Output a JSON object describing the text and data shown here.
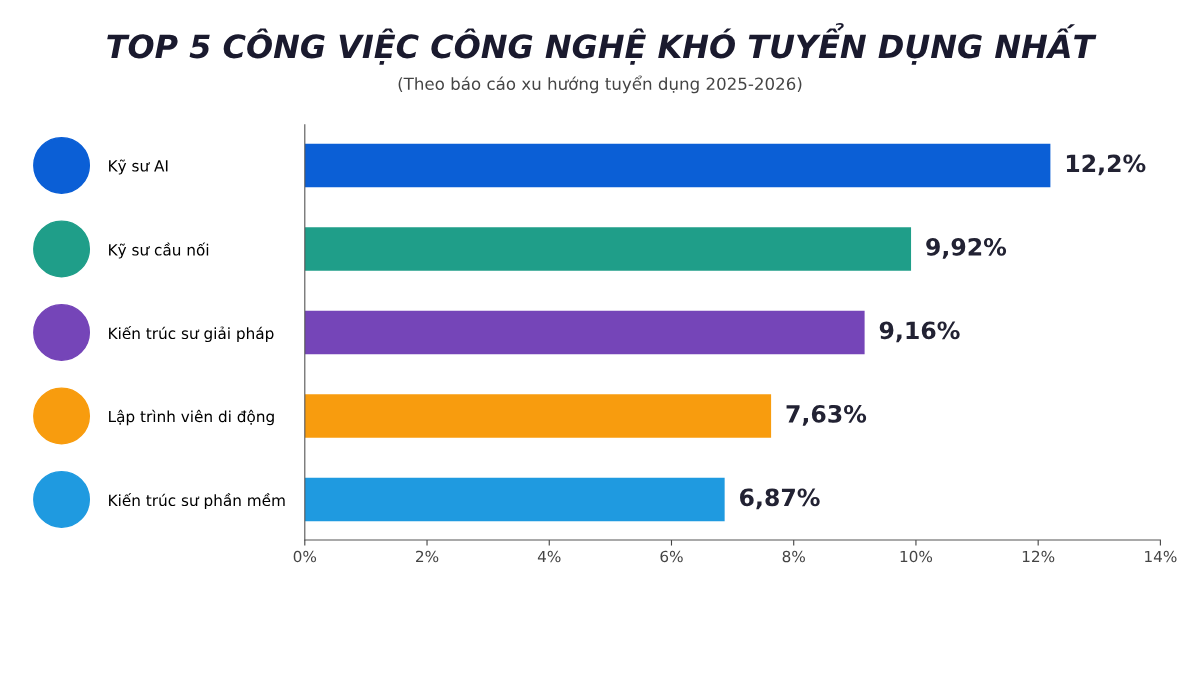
{
  "chart_data": {
    "type": "bar",
    "orientation": "horizontal",
    "title": "TOP 5 CÔNG VIỆC CÔNG NGHỆ KHÓ TUYỂN DỤNG NHẤT",
    "subtitle": "(Theo báo cáo xu hướng tuyển dụng 2025-2026)",
    "categories": [
      "Kỹ sư AI",
      "Kỹ sư cầu nối",
      "Kiến trúc sư giải pháp",
      "Lập trình viên di động",
      "Kiến trúc sư phần mềm"
    ],
    "values": [
      12.2,
      9.92,
      9.16,
      7.63,
      6.87
    ],
    "colors": [
      "#0b5fd6",
      "#1f9e89",
      "#7545b8",
      "#f89c0e",
      "#1f9ae0"
    ],
    "value_labels": [
      "12,2%",
      "9,92%",
      "9,16%",
      "7,63%",
      "6,87%"
    ],
    "xlim": [
      0,
      14
    ],
    "xticks": [
      {
        "value": 0,
        "label": "0%"
      },
      {
        "value": 2,
        "label": "2%"
      },
      {
        "value": 4,
        "label": "4%"
      },
      {
        "value": 6,
        "label": "6%"
      },
      {
        "value": 8,
        "label": "8%"
      },
      {
        "value": 10,
        "label": "10%"
      },
      {
        "value": 12,
        "label": "12%"
      },
      {
        "value": 14,
        "label": "14%"
      }
    ],
    "grid": false,
    "legend": false
  }
}
